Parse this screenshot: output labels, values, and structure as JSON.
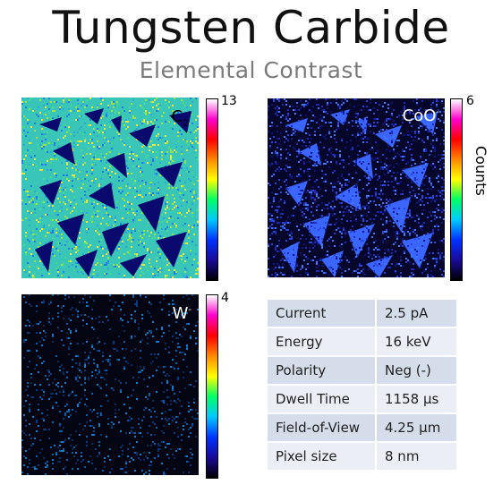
{
  "header": {
    "title": "Tungsten Carbide",
    "subtitle": "Elemental Contrast"
  },
  "maps": [
    {
      "species": "C",
      "subscript": "2",
      "superscript": "-",
      "max": "13",
      "label_color": "#000000"
    },
    {
      "species": "CoO",
      "subscript": "",
      "superscript": "-",
      "max": "6",
      "label_color": "#ffffff"
    },
    {
      "species": "W",
      "subscript": "",
      "superscript": "-",
      "max": "4",
      "label_color": "#ffffff"
    }
  ],
  "colorbar": {
    "axis_label": "Counts",
    "min": "0",
    "colors": [
      "#000000",
      "#1a0a9a",
      "#0033ff",
      "#00c8ff",
      "#00ff66",
      "#ffff00",
      "#ff8800",
      "#ff0000",
      "#ff00cc",
      "#ffffff"
    ]
  },
  "params": {
    "rows": [
      {
        "key": "Current",
        "value": "2.5 pA"
      },
      {
        "key": "Energy",
        "value": "16 keV"
      },
      {
        "key": "Polarity",
        "value": "Neg (-)"
      },
      {
        "key": "Dwell Time",
        "value": "1158 µs"
      },
      {
        "key": "Field-of-View",
        "value": "4.25 µm"
      },
      {
        "key": "Pixel size",
        "value": "8 nm"
      }
    ]
  }
}
